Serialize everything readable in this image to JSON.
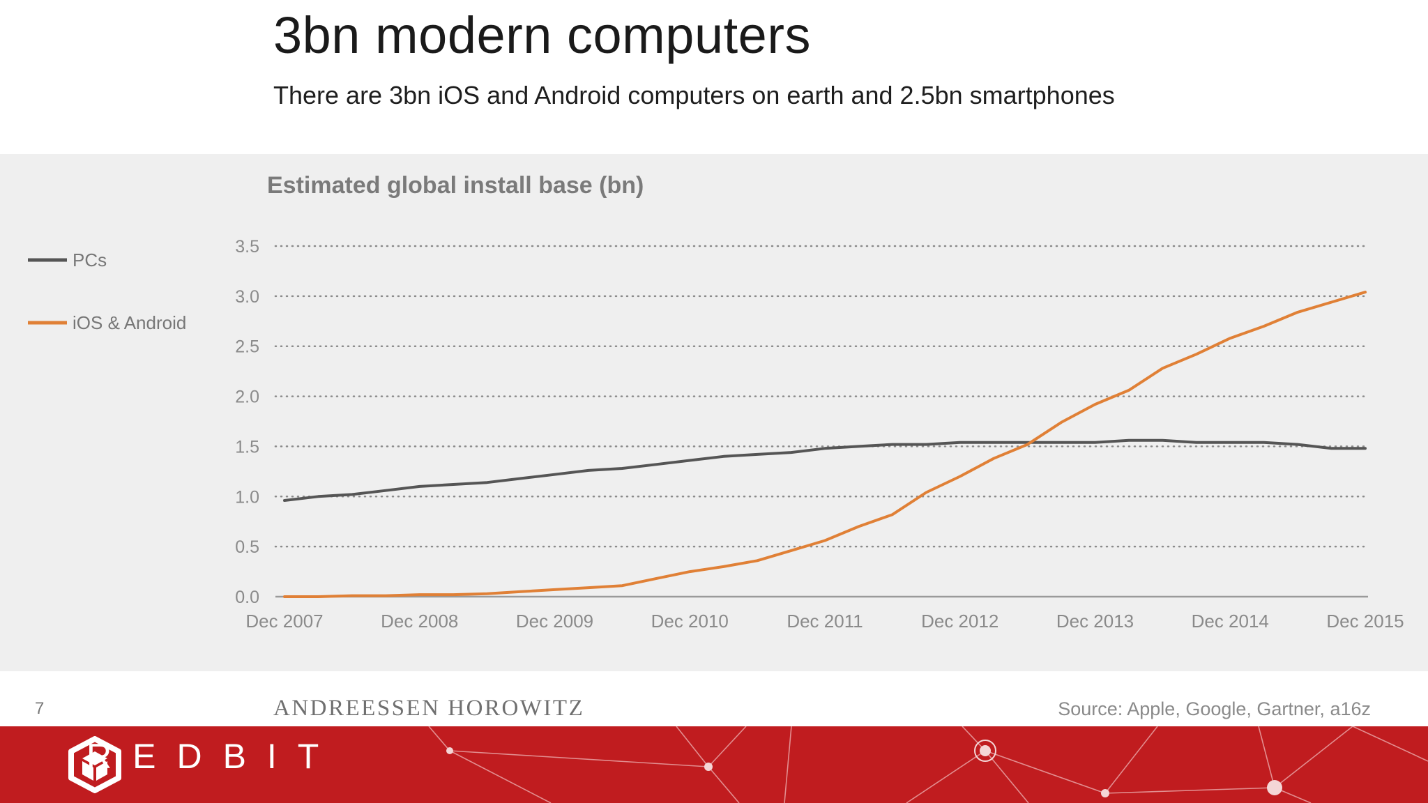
{
  "slide": {
    "title": "3bn modern computers",
    "subtitle": "There are 3bn iOS and Android computers on earth and 2.5bn smartphones",
    "page_number": "7",
    "brand": "ANDREESSEN HOROWITZ",
    "source": "Source: Apple, Google, Gartner, a16z"
  },
  "footer": {
    "logo_text": "REDBIT",
    "band_color": "#c01c1f"
  },
  "chart_data": {
    "type": "line",
    "title": "Estimated global install base (bn)",
    "xlabel": "",
    "ylabel": "",
    "categories": [
      "Dec 2007",
      "Dec 2008",
      "Dec 2009",
      "Dec 2010",
      "Dec 2011",
      "Dec 2012",
      "Dec 2013",
      "Dec 2014",
      "Dec 2015"
    ],
    "x": [
      2007.92,
      2008.17,
      2008.42,
      2008.67,
      2008.92,
      2009.17,
      2009.42,
      2009.67,
      2009.92,
      2010.17,
      2010.42,
      2010.67,
      2010.92,
      2011.17,
      2011.42,
      2011.67,
      2011.92,
      2012.17,
      2012.42,
      2012.67,
      2012.92,
      2013.17,
      2013.42,
      2013.67,
      2013.92,
      2014.17,
      2014.42,
      2014.67,
      2014.92,
      2015.17,
      2015.42,
      2015.67,
      2015.92
    ],
    "series": [
      {
        "name": "PCs",
        "color": "#555555",
        "values": [
          0.96,
          1.0,
          1.02,
          1.06,
          1.1,
          1.12,
          1.14,
          1.18,
          1.22,
          1.26,
          1.28,
          1.32,
          1.36,
          1.4,
          1.42,
          1.44,
          1.48,
          1.5,
          1.52,
          1.52,
          1.54,
          1.54,
          1.54,
          1.54,
          1.54,
          1.56,
          1.56,
          1.54,
          1.54,
          1.54,
          1.52,
          1.48,
          1.48
        ]
      },
      {
        "name": "iOS & Android",
        "color": "#e08036",
        "values": [
          0.0,
          0.0,
          0.01,
          0.01,
          0.02,
          0.02,
          0.03,
          0.05,
          0.07,
          0.09,
          0.11,
          0.18,
          0.25,
          0.3,
          0.36,
          0.46,
          0.56,
          0.7,
          0.82,
          1.04,
          1.2,
          1.38,
          1.52,
          1.74,
          1.92,
          2.06,
          2.28,
          2.42,
          2.58,
          2.7,
          2.84,
          2.94,
          3.04
        ]
      }
    ],
    "yticks": [
      "0.0",
      "0.5",
      "1.0",
      "1.5",
      "2.0",
      "2.5",
      "3.0",
      "3.5"
    ],
    "ylim": [
      0,
      3.5
    ],
    "xlim": [
      2007.92,
      2015.92
    ],
    "grid": true,
    "legend": "left"
  }
}
